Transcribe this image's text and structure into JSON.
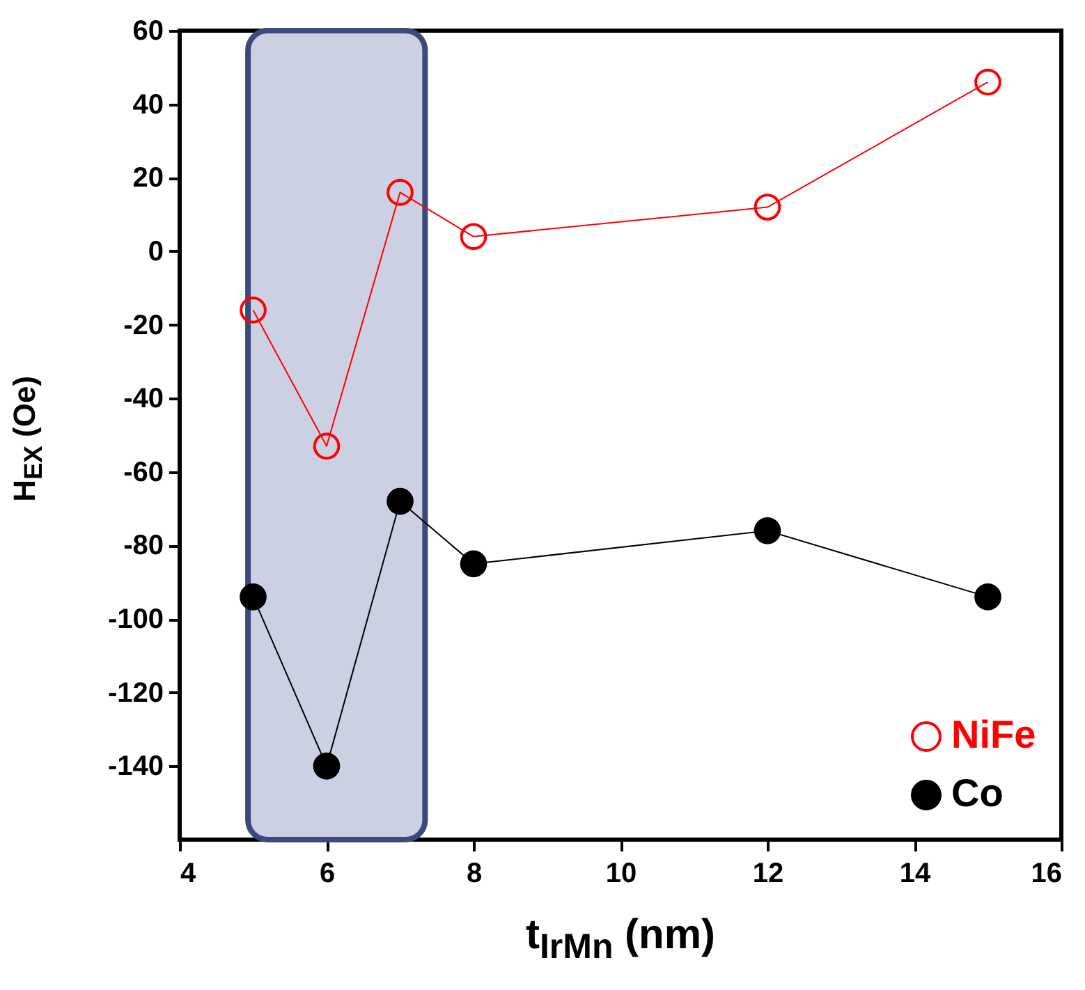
{
  "chart_data": {
    "type": "line",
    "xlabel": "t$_{IrMn}$ (nm)",
    "ylabel": "H$_{EX}$ (Oe)",
    "x": [
      5,
      6,
      7,
      8,
      12,
      15
    ],
    "series": [
      {
        "name": "NiFe",
        "color": "#ff0000",
        "values": [
          -16,
          -53,
          16,
          4,
          12,
          46
        ]
      },
      {
        "name": "Co",
        "color": "#000000",
        "values": [
          -94,
          -140,
          -68,
          -85,
          -76,
          -94
        ]
      }
    ],
    "xlim": [
      4,
      16
    ],
    "xticks": [
      4,
      6,
      8,
      10,
      12,
      14,
      16
    ],
    "ylim": [
      -160,
      60
    ],
    "yticks": [
      -140,
      -120,
      -100,
      -80,
      -60,
      -40,
      -20,
      0,
      20,
      40,
      60
    ],
    "bands": [
      {
        "axis": "x",
        "from": 4.93,
        "to": 7.34,
        "color": "#c5cbe0"
      }
    ],
    "marker": "circle",
    "line_style": "solid",
    "legend": "bottom right",
    "grid": false
  }
}
